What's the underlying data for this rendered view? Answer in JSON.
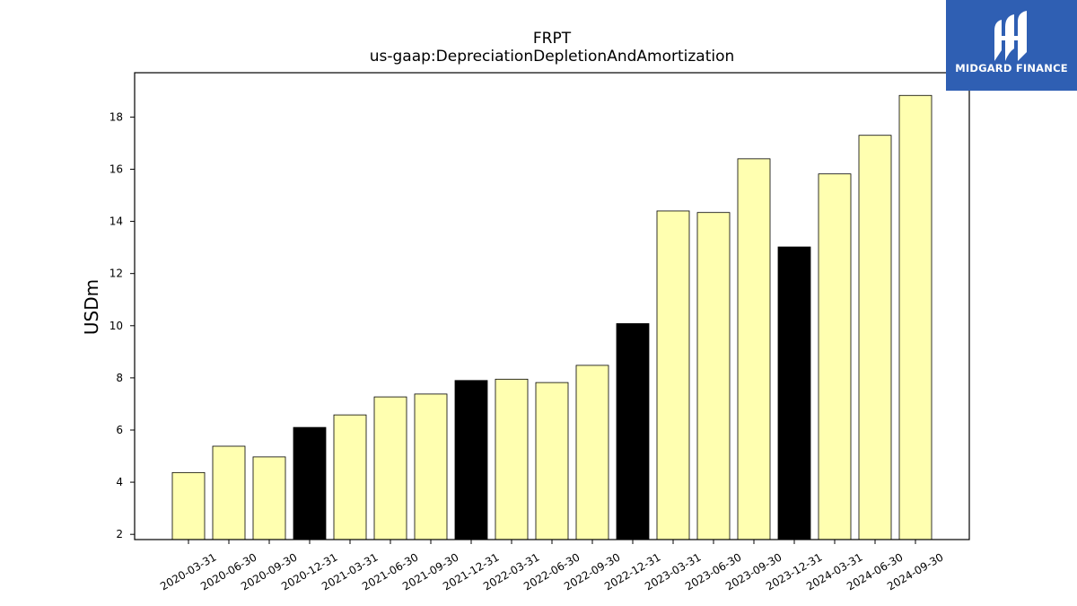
{
  "logo": {
    "text": "MIDGARD FINANCE",
    "icon": "midgard-finance-logo-icon",
    "background": "#2f5fb3"
  },
  "chart_data": {
    "type": "bar",
    "title": "FRPT",
    "subtitle": "us-gaap:DepreciationDepletionAndAmortization",
    "xlabel": "",
    "ylabel": "USDm",
    "ylim": [
      1.8,
      19.7
    ],
    "yticks": [
      2,
      4,
      6,
      8,
      10,
      12,
      14,
      16,
      18
    ],
    "grid": false,
    "colors": {
      "quarter": "#ffffb0",
      "year_end": "#000000",
      "edge": "#000000"
    },
    "categories": [
      "2020-03-31",
      "2020-06-30",
      "2020-09-30",
      "2020-12-31",
      "2021-03-31",
      "2021-06-30",
      "2021-09-30",
      "2021-12-31",
      "2022-03-31",
      "2022-06-30",
      "2022-09-30",
      "2022-12-31",
      "2023-03-31",
      "2023-06-30",
      "2023-09-30",
      "2023-12-31",
      "2024-03-31",
      "2024-06-30",
      "2024-09-30"
    ],
    "values": [
      4.37,
      5.38,
      4.97,
      6.1,
      6.58,
      7.27,
      7.38,
      7.9,
      7.95,
      7.82,
      8.48,
      10.08,
      14.4,
      14.34,
      16.4,
      13.02,
      15.82,
      17.3,
      18.83
    ],
    "highlight_year_end": true
  }
}
